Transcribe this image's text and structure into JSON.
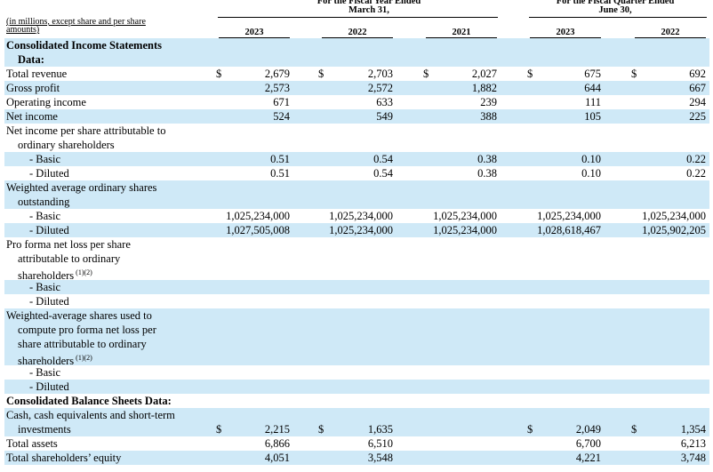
{
  "header": {
    "unit_note": "(in millions, except share and per share amounts)",
    "groups": [
      {
        "title_lines": [
          "For the Fiscal Year Ended",
          "March 31,"
        ]
      },
      {
        "title_lines": [
          "For the Fiscal Quarter Ended",
          "June 30,"
        ]
      }
    ],
    "columns": [
      "2023",
      "2022",
      "2021",
      "2023",
      "2022"
    ]
  },
  "currency_symbol": "$",
  "rows": [
    {
      "label_lines": [
        "Consolidated Income Statements",
        "Data:"
      ],
      "bold": true
    },
    {
      "label_lines": [
        "Total revenue"
      ],
      "dollar": [
        true,
        true,
        true,
        true,
        true
      ],
      "values": [
        "2,679",
        "2,703",
        "2,027",
        "675",
        "692"
      ]
    },
    {
      "label_lines": [
        "Gross profit"
      ],
      "values": [
        "2,573",
        "2,572",
        "1,882",
        "644",
        "667"
      ]
    },
    {
      "label_lines": [
        "Operating income"
      ],
      "values": [
        "671",
        "633",
        "239",
        "111",
        "294"
      ]
    },
    {
      "label_lines": [
        "Net income"
      ],
      "values": [
        "524",
        "549",
        "388",
        "105",
        "225"
      ]
    },
    {
      "label_lines": [
        "Net income per share attributable to",
        "ordinary shareholders"
      ]
    },
    {
      "label_lines": [
        "- Basic"
      ],
      "sub": true,
      "values": [
        "0.51",
        "0.54",
        "0.38",
        "0.10",
        "0.22"
      ]
    },
    {
      "label_lines": [
        "- Diluted"
      ],
      "sub": true,
      "values": [
        "0.51",
        "0.54",
        "0.38",
        "0.10",
        "0.22"
      ]
    },
    {
      "label_lines": [
        "Weighted average ordinary shares",
        "outstanding"
      ]
    },
    {
      "label_lines": [
        "- Basic"
      ],
      "sub": true,
      "values": [
        "1,025,234,000",
        "1,025,234,000",
        "1,025,234,000",
        "1,025,234,000",
        "1,025,234,000"
      ]
    },
    {
      "label_lines": [
        "- Diluted"
      ],
      "sub": true,
      "values": [
        "1,027,505,008",
        "1,025,234,000",
        "1,025,234,000",
        "1,028,618,467",
        "1,025,902,205"
      ]
    },
    {
      "label_lines": [
        "Pro forma net loss per share",
        "attributable to ordinary",
        "shareholders"
      ],
      "sup": "(1)(2)"
    },
    {
      "label_lines": [
        "- Basic"
      ],
      "sub": true
    },
    {
      "label_lines": [
        "- Diluted"
      ],
      "sub": true
    },
    {
      "label_lines": [
        "Weighted-average shares used to",
        "compute pro forma net loss per",
        "share attributable to ordinary",
        "shareholders"
      ],
      "sup": "(1)(2)"
    },
    {
      "label_lines": [
        "- Basic"
      ],
      "sub": true
    },
    {
      "label_lines": [
        "- Diluted"
      ],
      "sub": true
    },
    {
      "label_lines": [
        "Consolidated Balance Sheets Data:"
      ],
      "bold": true
    },
    {
      "label_lines": [
        "Cash, cash equivalents and short-term",
        "investments"
      ],
      "dollar": [
        true,
        true,
        false,
        true,
        true
      ],
      "values": [
        "2,215",
        "1,635",
        "",
        "2,049",
        "1,354"
      ]
    },
    {
      "label_lines": [
        "Total assets"
      ],
      "values": [
        "6,866",
        "6,510",
        "",
        "6,700",
        "6,213"
      ]
    },
    {
      "label_lines": [
        "Total shareholders’ equity"
      ],
      "values": [
        "4,051",
        "3,548",
        "",
        "4,221",
        "3,748"
      ]
    }
  ]
}
